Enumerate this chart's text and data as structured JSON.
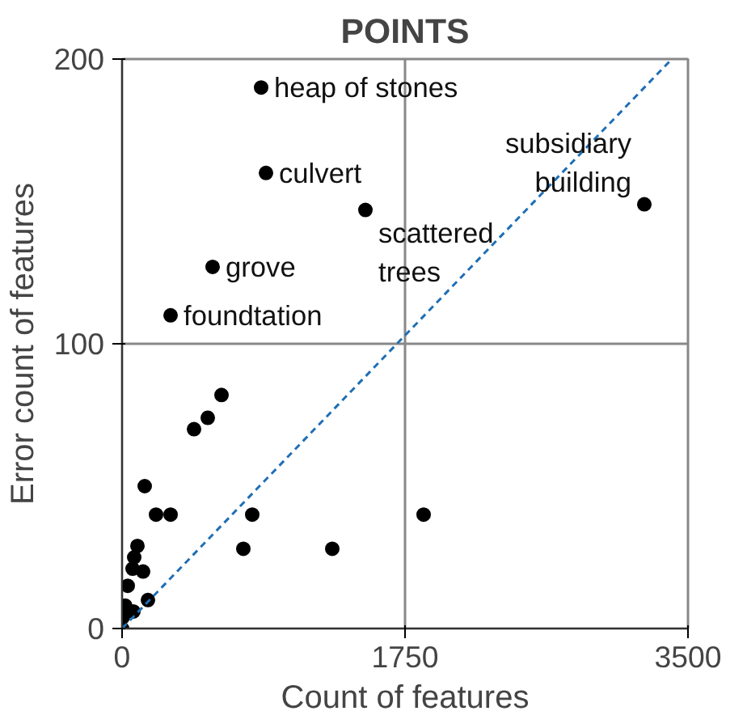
{
  "chart_data": {
    "type": "scatter",
    "title": "POINTS",
    "xlabel": "Count of features",
    "ylabel": "Error count of features",
    "xlim": [
      0,
      3500
    ],
    "ylim": [
      0,
      200
    ],
    "xticks": [
      0,
      1750,
      3500
    ],
    "yticks": [
      0,
      100,
      200
    ],
    "grid": true,
    "series": [
      {
        "color": "#000000",
        "marker": "circle",
        "x": [
          860,
          890,
          1505,
          3230,
          560,
          300,
          615,
          530,
          445,
          140,
          210,
          300,
          805,
          750,
          1300,
          1865,
          95,
          75,
          65,
          130,
          35,
          160,
          20,
          5,
          70,
          0
        ],
        "values": [
          190,
          160,
          147,
          149,
          127,
          110,
          82,
          74,
          70,
          50,
          40,
          40,
          40,
          28,
          28,
          40,
          29,
          25,
          21,
          20,
          15,
          10,
          8,
          4,
          6,
          0
        ]
      },
      {
        "type": "line",
        "line_style": "dashed",
        "color": "#1f6fb5",
        "x": [
          0,
          3400
        ],
        "values": [
          0,
          200
        ]
      }
    ],
    "annotations": [
      {
        "text": "heap of stones",
        "x": 860,
        "y": 190
      },
      {
        "text": "culvert",
        "x": 890,
        "y": 160
      },
      {
        "text": "scattered trees",
        "x": 1505,
        "y": 147
      },
      {
        "text": "subsidiary building",
        "x": 3230,
        "y": 149
      },
      {
        "text": "grove",
        "x": 560,
        "y": 127
      },
      {
        "text": "foundtation",
        "x": 300,
        "y": 110
      }
    ]
  }
}
